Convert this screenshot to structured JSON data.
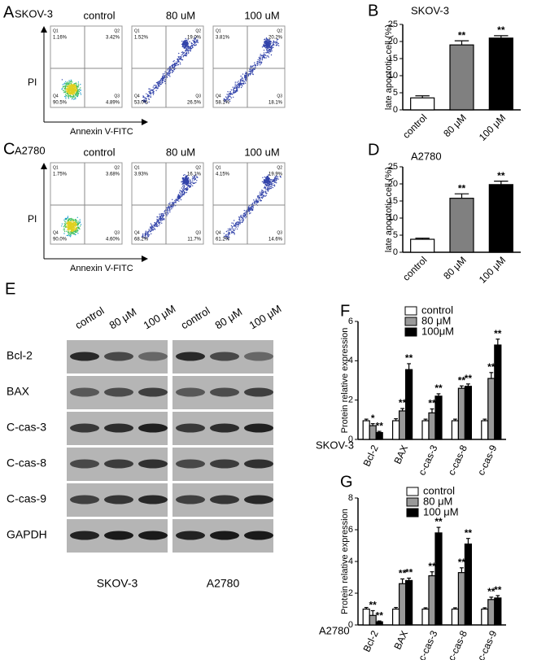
{
  "chart_data": [
    {
      "type": "bar",
      "panel": "B",
      "cell_line": "SKOV-3",
      "y_label": "late apoptotic cell (%)",
      "categories": [
        "control",
        "80 μM",
        "100 μM"
      ],
      "values": [
        3.5,
        19,
        21
      ],
      "errors": [
        0.6,
        1.2,
        0.7
      ],
      "colors": [
        "#ffffff",
        "#808080",
        "#000000"
      ],
      "annotations": [
        null,
        "**",
        "**"
      ],
      "ylim": [
        0,
        25
      ],
      "yticks": [
        0,
        5,
        10,
        15,
        20,
        25
      ]
    },
    {
      "type": "bar",
      "panel": "D",
      "cell_line": "A2780",
      "y_label": "late apoptotic cell (%)",
      "categories": [
        "control",
        "80 μM",
        "100 μM"
      ],
      "values": [
        3.8,
        15.8,
        19.8
      ],
      "errors": [
        0.3,
        1.3,
        1.0
      ],
      "colors": [
        "#ffffff",
        "#808080",
        "#000000"
      ],
      "annotations": [
        null,
        "**",
        "**"
      ],
      "ylim": [
        0,
        25
      ],
      "yticks": [
        0,
        5,
        10,
        15,
        20,
        25
      ]
    },
    {
      "type": "grouped-bar",
      "panel": "F",
      "cell_line": "SKOV-3",
      "y_label": "Protein relative expression",
      "categories": [
        "Bcl-2",
        "BAX",
        "c-cas-3",
        "c-cas-8",
        "c-cas-9"
      ],
      "series": [
        {
          "name": "control",
          "color": "#ffffff",
          "values": [
            0.95,
            0.95,
            0.95,
            0.95,
            0.95
          ],
          "errors": [
            0.08,
            0.1,
            0.08,
            0.08,
            0.08
          ],
          "annotations": [
            null,
            null,
            null,
            null,
            null
          ]
        },
        {
          "name": "80 μM",
          "color": "#999999",
          "values": [
            0.7,
            1.45,
            1.35,
            2.6,
            3.1
          ],
          "errors": [
            0.1,
            0.12,
            0.2,
            0.12,
            0.3
          ],
          "annotations": [
            "*",
            "**",
            "**",
            "**",
            "**"
          ]
        },
        {
          "name": "100μM",
          "color": "#000000",
          "values": [
            0.35,
            3.55,
            2.2,
            2.7,
            4.8
          ],
          "errors": [
            0.06,
            0.3,
            0.12,
            0.12,
            0.3
          ],
          "annotations": [
            "**",
            "**",
            "**",
            "**",
            "**"
          ]
        }
      ],
      "ylim": [
        0,
        6
      ],
      "yticks": [
        0,
        2,
        4,
        6
      ]
    },
    {
      "type": "grouped-bar",
      "panel": "G",
      "cell_line": "A2780",
      "y_label": "Protein relative expression",
      "categories": [
        "Bcl-2",
        "BAX",
        "c-cas-3",
        "c-cas-8",
        "c-cas-9"
      ],
      "series": [
        {
          "name": "control",
          "color": "#ffffff",
          "values": [
            1,
            1,
            1,
            1,
            1
          ],
          "errors": [
            0.1,
            0.1,
            0.08,
            0.08,
            0.08
          ],
          "annotations": [
            null,
            null,
            null,
            null,
            null
          ]
        },
        {
          "name": "80 μM",
          "color": "#999999",
          "values": [
            0.6,
            2.6,
            3.1,
            3.3,
            1.6
          ],
          "errors": [
            0.3,
            0.3,
            0.25,
            0.3,
            0.15
          ],
          "annotations": [
            "**",
            "**",
            "**",
            "**",
            "**"
          ]
        },
        {
          "name": "100 μM",
          "color": "#000000",
          "values": [
            0.2,
            2.8,
            5.8,
            5.1,
            1.7
          ],
          "errors": [
            0.05,
            0.15,
            0.35,
            0.35,
            0.15
          ],
          "annotations": [
            "**",
            "**",
            "**",
            "**",
            "**"
          ]
        }
      ],
      "ylim": [
        0,
        8
      ],
      "yticks": [
        0,
        2,
        4,
        6,
        8
      ]
    }
  ],
  "flow": [
    {
      "panel": "A",
      "cell_line": "SKOV-3",
      "x_label": "Annexin V-FITC",
      "y_label": "PI",
      "quadrants": [
        "Q1",
        "Q2",
        "Q4",
        "Q3"
      ],
      "plots": [
        {
          "title": "control",
          "percents": [
            "1.16%",
            "3.42%",
            "90.5%",
            "4.89%"
          ]
        },
        {
          "title": "80 uM",
          "percents": [
            "1.52%",
            "19.0%",
            "53.0%",
            "26.5%"
          ]
        },
        {
          "title": "100 uM",
          "percents": [
            "3.81%",
            "20.2%",
            "58.1%",
            "18.1%"
          ]
        }
      ]
    },
    {
      "panel": "C",
      "cell_line": "A2780",
      "x_label": "Annexin V-FITC",
      "y_label": "PI",
      "quadrants": [
        "Q1",
        "Q2",
        "Q4",
        "Q3"
      ],
      "plots": [
        {
          "title": "control",
          "percents": [
            "1.75%",
            "3.68%",
            "90.0%",
            "4.60%"
          ]
        },
        {
          "title": "80 uM",
          "percents": [
            "3.93%",
            "16.1%",
            "68.2%",
            "11.7%"
          ]
        },
        {
          "title": "100 uM",
          "percents": [
            "4.15%",
            "19.9%",
            "61.2%",
            "14.6%"
          ]
        }
      ]
    }
  ],
  "blot": {
    "panel": "E",
    "columns": [
      "control",
      "80 μM",
      "100 μM"
    ],
    "rows": [
      "Bcl-2",
      "BAX",
      "C-cas-3",
      "C-cas-8",
      "C-cas-9",
      "GAPDH"
    ],
    "groups": [
      "SKOV-3",
      "A2780"
    ]
  }
}
